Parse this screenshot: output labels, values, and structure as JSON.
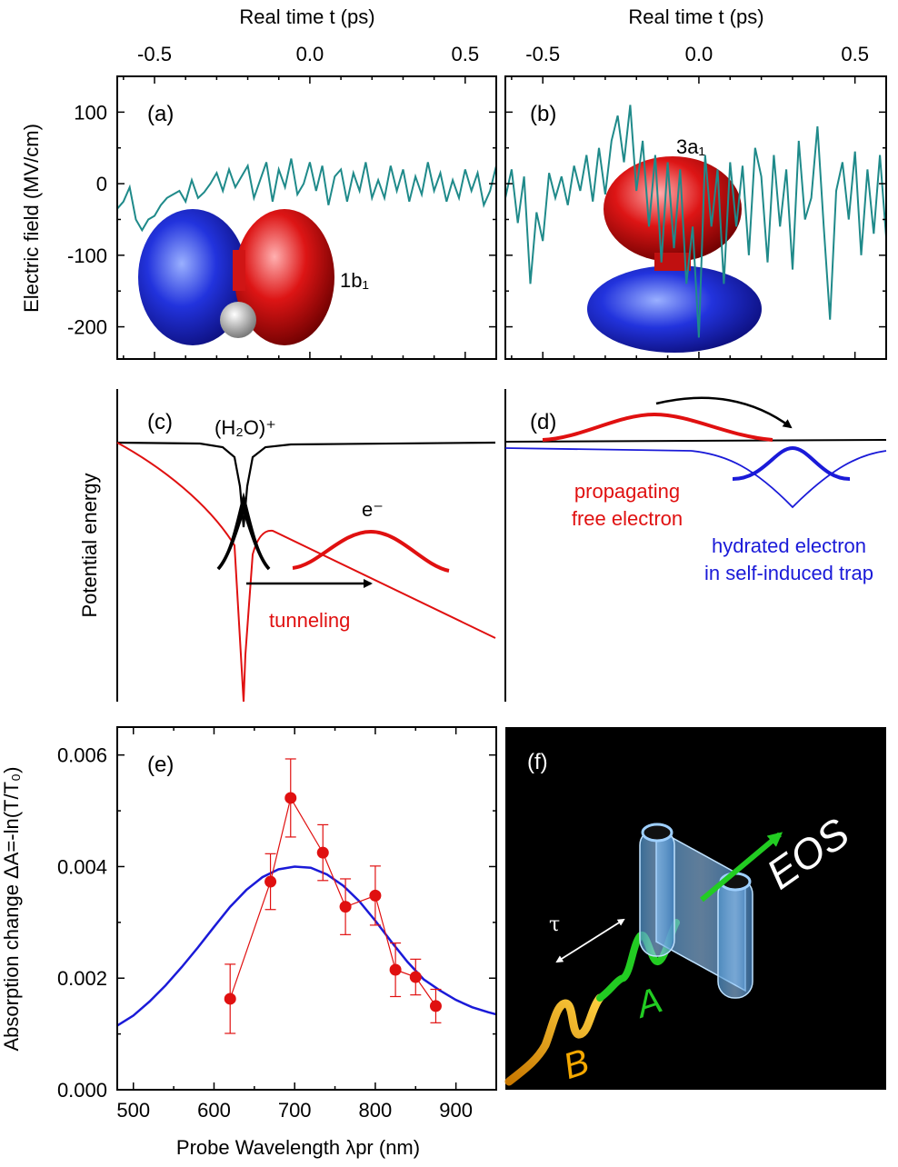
{
  "top_axis": {
    "title": "Real time t (ps)",
    "ticks": [
      "-0.5",
      "0.0",
      "0.5"
    ]
  },
  "panel_a": {
    "label": "(a)",
    "orbital_label": "1b₁"
  },
  "panel_b": {
    "label": "(b)",
    "orbital_label": "3a₁"
  },
  "panel_c": {
    "label": "(c)",
    "ion_label": "(H₂O)⁺",
    "electron_label": "e⁻",
    "tunneling_label": "tunneling"
  },
  "panel_d": {
    "label": "(d)",
    "free_line1": "propagating",
    "free_line2": "free electron",
    "hydrated_line1": "hydrated electron",
    "hydrated_line2": "in self-induced trap"
  },
  "panel_e": {
    "label": "(e)"
  },
  "panel_f": {
    "label": "(f)",
    "eos_label": "EOS",
    "tau_label": "τ",
    "pulse_a_label": "A",
    "pulse_b_label": "B"
  },
  "left_axis_labels": {
    "electric_field": "Electric field (MV/cm)",
    "potential": "Potential energy",
    "absorption": "Absorption change ΔA=-ln(T/T₀)",
    "ef_ticks": [
      "100",
      "0",
      "-100",
      "-200"
    ],
    "abs_ticks": [
      "0.006",
      "0.004",
      "0.002",
      "0.000"
    ]
  },
  "bottom_axis": {
    "title": "Probe Wavelength λpr (nm)",
    "ticks": [
      "500",
      "600",
      "700",
      "800",
      "900"
    ]
  },
  "colors": {
    "trace": "#1f8a8a",
    "red": "#e01010",
    "blue": "#1a1ad8",
    "green": "#22cc22",
    "orange": "#f5a800"
  },
  "chart_data": [
    {
      "type": "line",
      "panel": "a",
      "title": "",
      "xlabel": "Real time t (ps)",
      "ylabel": "Electric field (MV/cm)",
      "xlim": [
        -0.62,
        0.6
      ],
      "ylim": [
        -245,
        150
      ],
      "x": [
        -0.62,
        -0.6,
        -0.58,
        -0.56,
        -0.54,
        -0.52,
        -0.5,
        -0.48,
        -0.46,
        -0.44,
        -0.42,
        -0.4,
        -0.38,
        -0.36,
        -0.34,
        -0.32,
        -0.3,
        -0.28,
        -0.26,
        -0.24,
        -0.22,
        -0.2,
        -0.18,
        -0.16,
        -0.14,
        -0.12,
        -0.1,
        -0.08,
        -0.06,
        -0.04,
        -0.02,
        0.0,
        0.02,
        0.04,
        0.06,
        0.08,
        0.1,
        0.12,
        0.14,
        0.16,
        0.18,
        0.2,
        0.22,
        0.24,
        0.26,
        0.28,
        0.3,
        0.32,
        0.34,
        0.36,
        0.38,
        0.4,
        0.42,
        0.44,
        0.46,
        0.48,
        0.5,
        0.52,
        0.54,
        0.56,
        0.58,
        0.6
      ],
      "y": [
        -35,
        -25,
        -5,
        -50,
        -65,
        -50,
        -45,
        -30,
        -20,
        -15,
        -10,
        -25,
        5,
        -20,
        -12,
        0,
        15,
        -10,
        20,
        -5,
        10,
        25,
        -20,
        5,
        30,
        -25,
        20,
        -5,
        35,
        -15,
        0,
        30,
        -10,
        25,
        -30,
        10,
        20,
        -25,
        15,
        -10,
        30,
        -20,
        5,
        -20,
        25,
        -10,
        20,
        -25,
        10,
        -15,
        30,
        -10,
        15,
        -25,
        5,
        -20,
        20,
        -10,
        15,
        -30,
        -10,
        25
      ]
    },
    {
      "type": "line",
      "panel": "b",
      "title": "",
      "xlabel": "Real time t (ps)",
      "ylabel": "",
      "xlim": [
        -0.62,
        0.6
      ],
      "ylim": [
        -245,
        150
      ],
      "x": [
        -0.62,
        -0.6,
        -0.58,
        -0.56,
        -0.54,
        -0.52,
        -0.5,
        -0.48,
        -0.46,
        -0.44,
        -0.42,
        -0.4,
        -0.38,
        -0.36,
        -0.34,
        -0.32,
        -0.3,
        -0.28,
        -0.26,
        -0.24,
        -0.22,
        -0.2,
        -0.18,
        -0.16,
        -0.14,
        -0.12,
        -0.1,
        -0.08,
        -0.06,
        -0.04,
        -0.02,
        0.0,
        0.02,
        0.04,
        0.06,
        0.08,
        0.1,
        0.12,
        0.14,
        0.16,
        0.18,
        0.2,
        0.22,
        0.24,
        0.26,
        0.28,
        0.3,
        0.32,
        0.34,
        0.36,
        0.38,
        0.4,
        0.42,
        0.44,
        0.46,
        0.48,
        0.5,
        0.52,
        0.54,
        0.56,
        0.58,
        0.6
      ],
      "y": [
        -20,
        20,
        -55,
        10,
        -140,
        -40,
        -80,
        15,
        -20,
        10,
        -30,
        25,
        -10,
        40,
        -25,
        50,
        -15,
        60,
        95,
        30,
        110,
        -10,
        60,
        -60,
        40,
        -110,
        30,
        -90,
        20,
        -140,
        -60,
        -215,
        40,
        -60,
        20,
        -140,
        30,
        -60,
        25,
        -100,
        50,
        10,
        -110,
        40,
        -60,
        20,
        -120,
        60,
        -50,
        -20,
        80,
        -60,
        -190,
        -10,
        30,
        -50,
        45,
        -100,
        20,
        -70,
        40,
        -75
      ]
    },
    {
      "type": "scatter",
      "panel": "e",
      "title": "",
      "xlabel": "Probe Wavelength λpr (nm)",
      "ylabel": "Absorption change ΔA=-ln(T/T₀)",
      "xlim": [
        480,
        950
      ],
      "ylim": [
        0,
        0.0065
      ],
      "x": [
        620,
        670,
        695,
        735,
        763,
        800,
        825,
        850,
        875
      ],
      "values": [
        0.00163,
        0.00373,
        0.00523,
        0.00425,
        0.00328,
        0.00348,
        0.00215,
        0.00202,
        0.0015
      ],
      "errors": [
        0.00062,
        0.0005,
        0.0007,
        0.0005,
        0.0005,
        0.00053,
        0.00048,
        0.00032,
        0.0003
      ],
      "fit_x": [
        480,
        500,
        520,
        540,
        560,
        580,
        600,
        620,
        640,
        660,
        680,
        700,
        720,
        740,
        760,
        780,
        800,
        820,
        840,
        860,
        880,
        900,
        920,
        940,
        950
      ],
      "fit_y": [
        0.00115,
        0.00133,
        0.00158,
        0.00187,
        0.0022,
        0.00255,
        0.00292,
        0.00328,
        0.00358,
        0.00381,
        0.00395,
        0.004,
        0.00398,
        0.00386,
        0.00366,
        0.00338,
        0.00303,
        0.00265,
        0.00229,
        0.00198,
        0.00178,
        0.00161,
        0.00148,
        0.00139,
        0.00135
      ]
    }
  ]
}
